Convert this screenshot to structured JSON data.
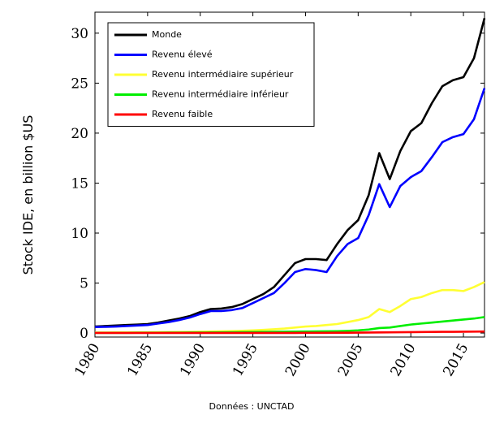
{
  "chart_data": {
    "type": "line",
    "ylabel": "Stock IDE, en billion $US",
    "source": "Données : UNCTAD",
    "x": [
      1980,
      1981,
      1982,
      1983,
      1984,
      1985,
      1986,
      1987,
      1988,
      1989,
      1990,
      1991,
      1992,
      1993,
      1994,
      1995,
      1996,
      1997,
      1998,
      1999,
      2000,
      2001,
      2002,
      2003,
      2004,
      2005,
      2006,
      2007,
      2008,
      2009,
      2010,
      2011,
      2012,
      2013,
      2014,
      2015,
      2016,
      2017
    ],
    "series": [
      {
        "name": "Monde",
        "color": "#000000",
        "values": [
          0.65,
          0.7,
          0.75,
          0.8,
          0.85,
          0.9,
          1.05,
          1.25,
          1.45,
          1.7,
          2.1,
          2.4,
          2.45,
          2.6,
          2.9,
          3.4,
          3.9,
          4.6,
          5.8,
          7.0,
          7.4,
          7.4,
          7.3,
          8.9,
          10.3,
          11.3,
          13.8,
          18.0,
          15.4,
          18.2,
          20.2,
          21.0,
          23.0,
          24.7,
          25.3,
          25.6,
          27.5,
          31.5
        ]
      },
      {
        "name": "Revenu élevé",
        "color": "#0000ff",
        "values": [
          0.6,
          0.62,
          0.65,
          0.7,
          0.75,
          0.8,
          0.95,
          1.1,
          1.3,
          1.55,
          1.9,
          2.2,
          2.2,
          2.3,
          2.5,
          3.0,
          3.5,
          4.0,
          5.0,
          6.1,
          6.4,
          6.3,
          6.1,
          7.7,
          8.9,
          9.5,
          11.8,
          14.9,
          12.6,
          14.7,
          15.6,
          16.2,
          17.6,
          19.1,
          19.6,
          19.9,
          21.4,
          24.5
        ]
      },
      {
        "name": "Revenu intermédiaire supérieur",
        "color": "#ffff33",
        "values": [
          0.05,
          0.05,
          0.06,
          0.06,
          0.07,
          0.07,
          0.08,
          0.09,
          0.1,
          0.11,
          0.13,
          0.15,
          0.17,
          0.2,
          0.23,
          0.27,
          0.32,
          0.38,
          0.45,
          0.55,
          0.65,
          0.7,
          0.8,
          0.9,
          1.1,
          1.3,
          1.6,
          2.4,
          2.1,
          2.7,
          3.4,
          3.6,
          4.0,
          4.3,
          4.3,
          4.2,
          4.6,
          5.1
        ]
      },
      {
        "name": "Revenu intermédiaire inférieur",
        "color": "#00ee00",
        "values": [
          0.02,
          0.02,
          0.02,
          0.02,
          0.03,
          0.03,
          0.03,
          0.04,
          0.04,
          0.05,
          0.05,
          0.06,
          0.07,
          0.08,
          0.09,
          0.1,
          0.11,
          0.12,
          0.13,
          0.14,
          0.15,
          0.16,
          0.17,
          0.19,
          0.22,
          0.27,
          0.35,
          0.5,
          0.55,
          0.7,
          0.85,
          0.95,
          1.05,
          1.15,
          1.25,
          1.35,
          1.45,
          1.6
        ]
      },
      {
        "name": "Revenu faible",
        "color": "#ff0000",
        "values": [
          0.01,
          0.01,
          0.01,
          0.01,
          0.01,
          0.01,
          0.01,
          0.01,
          0.01,
          0.01,
          0.01,
          0.01,
          0.01,
          0.01,
          0.01,
          0.01,
          0.01,
          0.01,
          0.01,
          0.01,
          0.02,
          0.02,
          0.02,
          0.03,
          0.03,
          0.04,
          0.05,
          0.06,
          0.07,
          0.08,
          0.09,
          0.1,
          0.11,
          0.12,
          0.12,
          0.13,
          0.14,
          0.15
        ]
      }
    ],
    "xlim": [
      1980,
      2017
    ],
    "xticks": [
      1980,
      1985,
      1990,
      1995,
      2000,
      2005,
      2010,
      2015
    ],
    "ylim": [
      -0.4,
      32.1
    ],
    "yticks": [
      0,
      5,
      10,
      15,
      20,
      25,
      30
    ],
    "legend": "upper left"
  }
}
